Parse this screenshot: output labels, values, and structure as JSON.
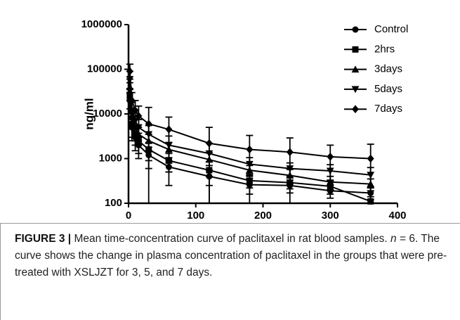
{
  "chart_data": {
    "type": "line",
    "ylabel": "ng/ml",
    "log_y": true,
    "x": [
      2,
      5,
      10,
      15,
      30,
      60,
      120,
      180,
      240,
      300,
      360
    ],
    "xlim": [
      0,
      400
    ],
    "xticks": [
      0,
      100,
      200,
      300,
      400
    ],
    "ylim": [
      100,
      1000000
    ],
    "yticks": [
      100,
      1000,
      10000,
      100000,
      1000000
    ],
    "legend": "top-right",
    "series": [
      {
        "name": "Control",
        "color": "#000000",
        "marker": "circle",
        "values": [
          20000,
          5000,
          3000,
          2000,
          1200,
          650,
          400,
          260,
          250,
          190,
          170
        ],
        "errors": [
          10000,
          2500,
          1500,
          1000,
          600,
          400,
          300,
          100,
          80,
          60,
          50
        ]
      },
      {
        "name": "2hrs",
        "color": "#000000",
        "marker": "square",
        "values": [
          25000,
          6000,
          3500,
          2500,
          1600,
          900,
          550,
          320,
          290,
          240,
          110
        ],
        "errors": [
          12000,
          3000,
          1500,
          1200,
          700,
          400,
          300,
          100,
          80,
          80,
          30
        ]
      },
      {
        "name": "3days",
        "color": "#000000",
        "marker": "triangle-up",
        "values": [
          40000,
          9000,
          5000,
          3500,
          2500,
          1600,
          950,
          550,
          420,
          300,
          270
        ],
        "errors": [
          20000,
          4000,
          2500,
          1500,
          1000,
          700,
          400,
          150,
          150,
          100,
          80
        ]
      },
      {
        "name": "5days",
        "color": "#000000",
        "marker": "triangle-down",
        "values": [
          60000,
          12000,
          7000,
          5000,
          3500,
          2000,
          1300,
          750,
          600,
          530,
          430
        ],
        "errors": [
          30000,
          6000,
          3500,
          2500,
          2000,
          1200,
          900,
          300,
          200,
          200,
          200
        ]
      },
      {
        "name": "7days",
        "color": "#000000",
        "marker": "diamond",
        "values": [
          90000,
          20000,
          12000,
          9000,
          6000,
          4500,
          2200,
          1600,
          1400,
          1100,
          1000
        ],
        "errors": [
          40000,
          10000,
          8000,
          6000,
          8000,
          4000,
          2800,
          1700,
          1500,
          900,
          1100
        ]
      }
    ]
  },
  "caption": {
    "label": "FIGURE 3 |",
    "text1": "Mean time-concentration curve of paclitaxel in rat blood samples.",
    "italic": "n",
    "text2": "= 6. The curve shows the change in plasma concentration of paclitaxel in the groups that were pre-treated with XSLJZT for 3, 5, and 7 days."
  }
}
